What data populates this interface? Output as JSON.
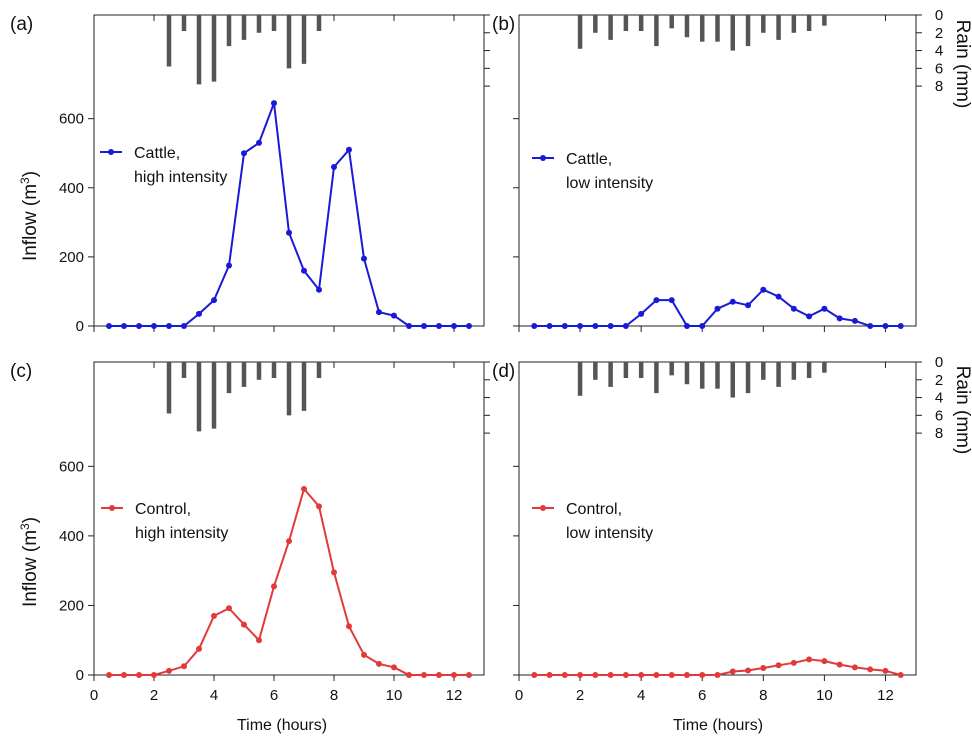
{
  "figure": {
    "inflow_label_main": "Inflow (m",
    "inflow_label_sup": "3",
    "inflow_label_end": ")",
    "rain_label": "Rain (mm)",
    "time_label": "Time (hours)",
    "x_ticks": [
      "0",
      "2",
      "4",
      "6",
      "8",
      "10",
      "12"
    ],
    "y_ticks": [
      "0",
      "200",
      "400",
      "600"
    ],
    "rain_ticks": [
      "0",
      "2",
      "4",
      "6",
      "8"
    ]
  },
  "colors": {
    "cattle": "#1a1ad6",
    "control": "#e23a3a",
    "rain": "#555555",
    "axis": "#222222"
  },
  "chart_data": [
    {
      "type": "line",
      "panel": "(a)",
      "legend": [
        "Cattle,",
        "high intensity"
      ],
      "series": [
        {
          "name": "Cattle, high intensity",
          "x": [
            0.5,
            1,
            1.5,
            2,
            2.5,
            3,
            3.5,
            4,
            4.5,
            5,
            5.5,
            6,
            6.5,
            7,
            7.5,
            8,
            8.5,
            9,
            9.5,
            10,
            10.5,
            11,
            11.5,
            12,
            12.5
          ],
          "y": [
            0,
            0,
            0,
            0,
            0,
            0,
            35,
            75,
            175,
            500,
            530,
            645,
            270,
            160,
            105,
            460,
            510,
            195,
            40,
            30,
            0,
            0,
            0,
            0,
            0
          ]
        }
      ],
      "rain": {
        "x": [
          2.5,
          3,
          3.5,
          4,
          4.5,
          5,
          5.5,
          6,
          6.5,
          7,
          7.5
        ],
        "y": [
          5.8,
          1.8,
          7.8,
          7.5,
          3.5,
          2.8,
          2,
          1.8,
          6,
          5.5,
          1.8
        ]
      },
      "xlim": [
        0,
        13
      ],
      "ylim": [
        0,
        900
      ],
      "rain_lim": [
        0,
        9
      ]
    },
    {
      "type": "line",
      "panel": "(b)",
      "legend": [
        "Cattle,",
        "low intensity"
      ],
      "series": [
        {
          "name": "Cattle, low intensity",
          "x": [
            0.5,
            1,
            1.5,
            2,
            2.5,
            3,
            3.5,
            4,
            4.5,
            5,
            5.5,
            6,
            6.5,
            7,
            7.5,
            8,
            8.5,
            9,
            9.5,
            10,
            10.5,
            11,
            11.5,
            12,
            12.5
          ],
          "y": [
            0,
            0,
            0,
            0,
            0,
            0,
            0,
            35,
            75,
            75,
            0,
            0,
            50,
            70,
            60,
            105,
            85,
            50,
            28,
            50,
            22,
            15,
            0,
            0,
            0
          ]
        }
      ],
      "rain": {
        "x": [
          2,
          2.5,
          3,
          3.5,
          4,
          4.5,
          5,
          5.5,
          6,
          6.5,
          7,
          7.5,
          8,
          8.5,
          9,
          9.5,
          10
        ],
        "y": [
          3.8,
          2,
          2.8,
          1.8,
          1.8,
          3.5,
          1.5,
          2.5,
          3,
          3,
          4,
          3.5,
          2,
          2.8,
          2,
          1.8,
          1.2
        ]
      },
      "xlim": [
        0,
        13
      ],
      "ylim": [
        0,
        900
      ],
      "rain_lim": [
        0,
        9
      ]
    },
    {
      "type": "line",
      "panel": "(c)",
      "legend": [
        "Control,",
        "high intensity"
      ],
      "series": [
        {
          "name": "Control, high intensity",
          "x": [
            0.5,
            1,
            1.5,
            2,
            2.5,
            3,
            3.5,
            4,
            4.5,
            5,
            5.5,
            6,
            6.5,
            7,
            7.5,
            8,
            8.5,
            9,
            9.5,
            10,
            10.5,
            11,
            11.5,
            12,
            12.5
          ],
          "y": [
            0,
            0,
            0,
            0,
            12,
            25,
            75,
            170,
            192,
            145,
            100,
            255,
            385,
            535,
            485,
            295,
            140,
            58,
            32,
            22,
            0,
            0,
            0,
            0,
            0
          ]
        }
      ],
      "rain": {
        "x": [
          2.5,
          3,
          3.5,
          4,
          4.5,
          5,
          5.5,
          6,
          6.5,
          7,
          7.5
        ],
        "y": [
          5.8,
          1.8,
          7.8,
          7.5,
          3.5,
          2.8,
          2,
          1.8,
          6,
          5.5,
          1.8
        ]
      },
      "xlim": [
        0,
        13
      ],
      "ylim": [
        0,
        900
      ],
      "rain_lim": [
        0,
        9
      ]
    },
    {
      "type": "line",
      "panel": "(d)",
      "legend": [
        "Control,",
        "low intensity"
      ],
      "series": [
        {
          "name": "Control, low intensity",
          "x": [
            0.5,
            1,
            1.5,
            2,
            2.5,
            3,
            3.5,
            4,
            4.5,
            5,
            5.5,
            6,
            6.5,
            7,
            7.5,
            8,
            8.5,
            9,
            9.5,
            10,
            10.5,
            11,
            11.5,
            12,
            12.5
          ],
          "y": [
            0,
            0,
            0,
            0,
            0,
            0,
            0,
            0,
            0,
            0,
            0,
            0,
            0,
            10,
            13,
            20,
            28,
            35,
            45,
            40,
            30,
            22,
            16,
            12,
            0
          ]
        }
      ],
      "rain": {
        "x": [
          2,
          2.5,
          3,
          3.5,
          4,
          4.5,
          5,
          5.5,
          6,
          6.5,
          7,
          7.5,
          8,
          8.5,
          9,
          9.5,
          10
        ],
        "y": [
          3.8,
          2,
          2.8,
          1.8,
          1.8,
          3.5,
          1.5,
          2.5,
          3,
          3,
          4,
          3.5,
          2,
          2.8,
          2,
          1.8,
          1.2
        ]
      },
      "xlim": [
        0,
        13
      ],
      "ylim": [
        0,
        900
      ],
      "rain_lim": [
        0,
        9
      ]
    }
  ]
}
